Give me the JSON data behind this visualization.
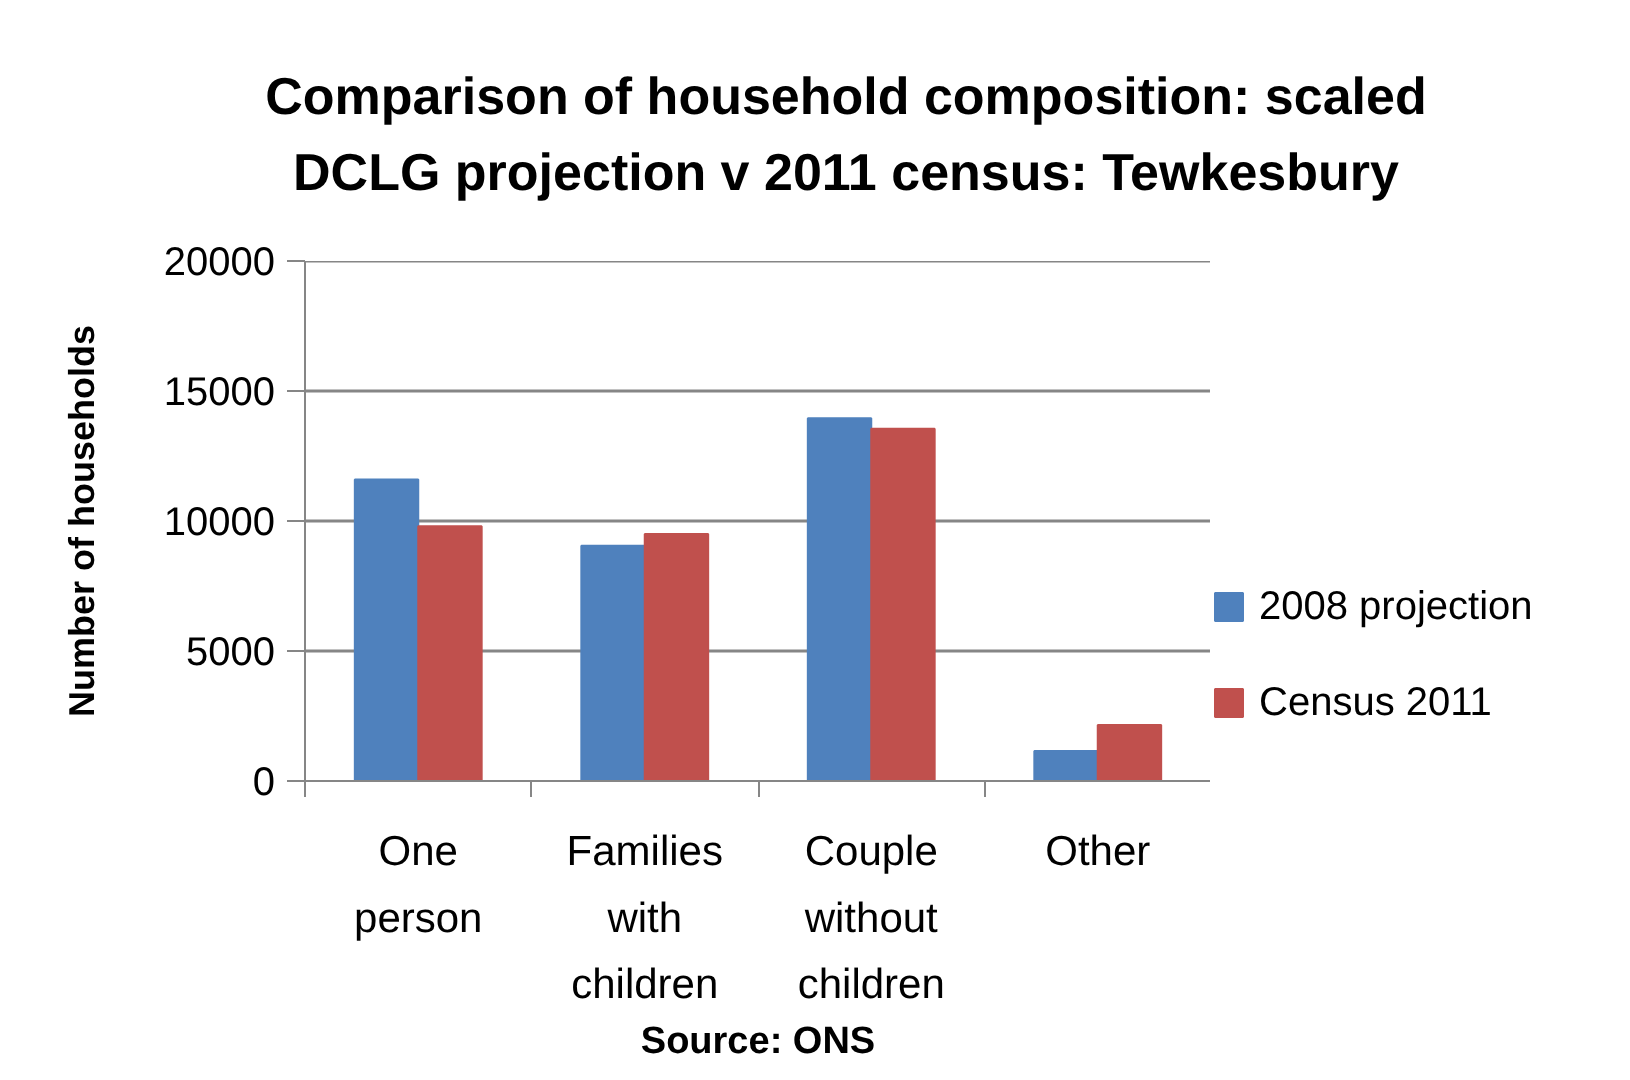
{
  "chart_data": {
    "type": "bar",
    "title": "Comparison of household composition: scaled DCLG projection v 2011 census: Tewkesbury",
    "ylabel": "Number of households",
    "annotations": [
      "Source: ONS"
    ],
    "categories": [
      "One person",
      "Families with children",
      "Couple without children",
      "Other"
    ],
    "series": [
      {
        "name": "2008 projection",
        "color": "#4f81bd",
        "values": [
          11600,
          9050,
          13950,
          1150
        ]
      },
      {
        "name": "Census 2011",
        "color": "#c0504d",
        "values": [
          9800,
          9500,
          13550,
          2150
        ]
      }
    ],
    "ylim": [
      0,
      20000
    ],
    "yticks": [
      0,
      5000,
      10000,
      15000,
      20000
    ],
    "grid": "y",
    "legend": "right"
  }
}
